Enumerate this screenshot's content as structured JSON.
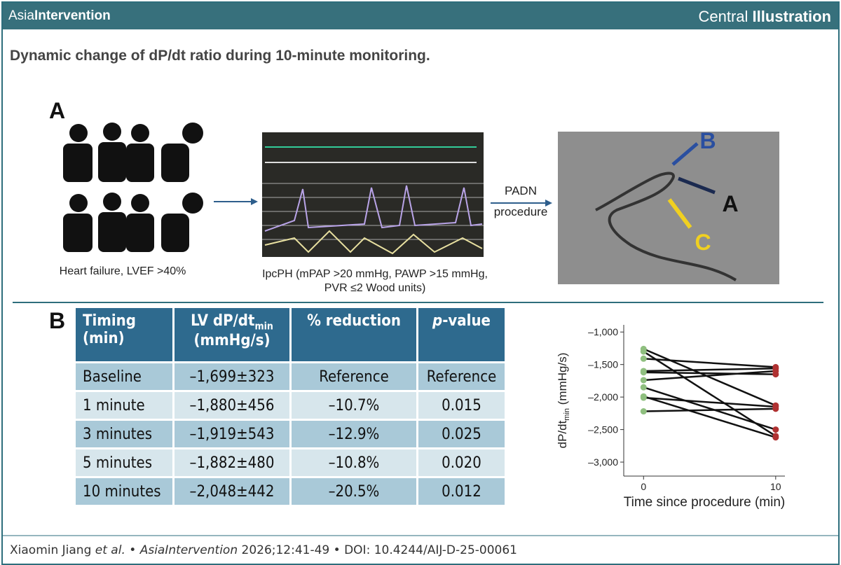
{
  "header": {
    "journal": [
      "Asia",
      "Intervention"
    ],
    "label": [
      "Central",
      "Illustration"
    ]
  },
  "title": "Dynamic change of dP/dt ratio during 10-minute monitoring.",
  "panel_a": {
    "label": "A",
    "caption_left": "Heart failure, LVEF >40%",
    "caption_middle": [
      "IpcPH (mPAP >20 mmHg, PAWP >15 mmHg,",
      "PVR ≤2 Wood units)"
    ],
    "arrow_label": [
      "PADN",
      "procedure"
    ],
    "image_labels": [
      "B",
      "A",
      "C"
    ]
  },
  "panel_b": {
    "label": "B",
    "table": {
      "header": [
        [
          "Timing",
          "(min)"
        ],
        [
          "LV dP/dt",
          "min",
          "(mmHg/s)"
        ],
        [
          "% reduction"
        ],
        [
          "p",
          "-value"
        ]
      ],
      "rows": [
        [
          "Baseline",
          "–1,699±323",
          "Reference",
          "Reference"
        ],
        [
          "1 minute",
          "–1,880±456",
          "–10.7%",
          "0.015"
        ],
        [
          "3 minutes",
          "–1,919±543",
          "–12.9%",
          "0.025"
        ],
        [
          "5 minutes",
          "–1,882±480",
          "–10.8%",
          "0.020"
        ],
        [
          "10 minutes",
          "–2,048±442",
          "–20.5%",
          "0.012"
        ]
      ]
    }
  },
  "chart_data": {
    "type": "line",
    "x": [
      0,
      10
    ],
    "xlabel": "Time since procedure (min)",
    "ylabel": [
      "dP/dt",
      "min",
      " (mmHg/s)"
    ],
    "xlim": [
      -1.5,
      10.7
    ],
    "ylim": [
      -3215,
      -890
    ],
    "xticks": [
      0,
      10
    ],
    "yticks": [
      {
        "value": -1000,
        "label": "–1,000"
      },
      {
        "value": -1500,
        "label": "–1,500"
      },
      {
        "value": -2000,
        "label": "–2,000"
      },
      {
        "value": -2500,
        "label": "–2,500"
      },
      {
        "value": -3000,
        "label": "–3,000"
      }
    ],
    "line_color": "#111111",
    "start_color": "#8fbf7f",
    "end_color": "#b03232",
    "series": [
      {
        "values": [
          -1260,
          -2130
        ]
      },
      {
        "values": [
          -1300,
          -2600
        ]
      },
      {
        "values": [
          -1410,
          -1540
        ]
      },
      {
        "values": [
          -1600,
          -1560
        ]
      },
      {
        "values": [
          -1620,
          -1650
        ]
      },
      {
        "values": [
          -1740,
          -1600
        ]
      },
      {
        "values": [
          -1850,
          -2500
        ]
      },
      {
        "values": [
          -1990,
          -2620
        ]
      },
      {
        "values": [
          -2010,
          -2150
        ]
      },
      {
        "values": [
          -2220,
          -2180
        ]
      }
    ]
  },
  "footer": [
    "Xiaomin Jiang ",
    "et al.",
    " • ",
    "AsiaIntervention",
    " 2026;12:41-49 • DOI: 10.4244/AIJ-D-25-00061"
  ]
}
